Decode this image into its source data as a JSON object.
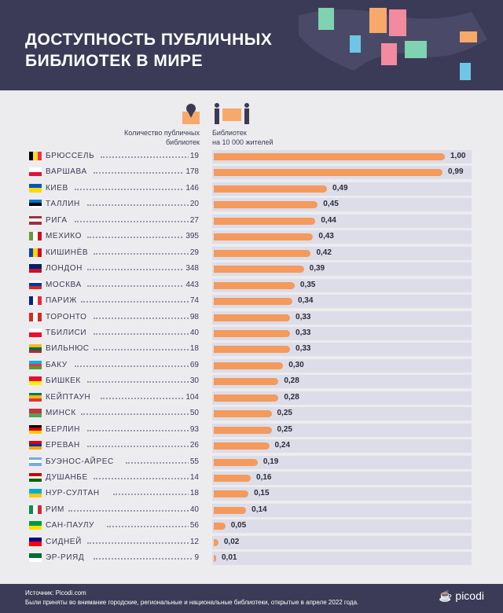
{
  "header": {
    "title_line1": "ДОСТУПНОСТЬ ПУБЛИЧНЫХ",
    "title_line2": "БИБЛИОТЕК В МИРЕ"
  },
  "columns": {
    "count_label_1": "Количество публичных",
    "count_label_2": "библиотек",
    "ratio_label_1": "Библиотек",
    "ratio_label_2": "на 10 000 жителей"
  },
  "chart_data": {
    "type": "bar",
    "orientation": "horizontal",
    "title": "ДОСТУПНОСТЬ ПУБЛИЧНЫХ БИБЛИОТЕК В МИРЕ",
    "xlabel": "Библиотек на 10 000 жителей",
    "xlim": [
      0,
      1
    ],
    "categories": [
      "БРЮССЕЛЬ",
      "ВАРШАВА",
      "КИЕВ",
      "ТАЛЛИН",
      "РИГА",
      "МЕХИКО",
      "КИШИНЁВ",
      "ЛОНДОН",
      "МОСКВА",
      "ПАРИЖ",
      "ТОРОНТО",
      "ТБИЛИСИ",
      "ВИЛЬНЮС",
      "БАКУ",
      "БИШКЕК",
      "КЕЙПТАУН",
      "МИНСК",
      "БЕРЛИН",
      "ЕРЕВАН",
      "БУЭНОС-АЙРЕС",
      "ДУШАНБЕ",
      "НУР-СУЛТАН",
      "РИМ",
      "САН-ПАУЛУ",
      "СИДНЕЙ",
      "ЭР-РИЯД"
    ],
    "counts": [
      19,
      178,
      146,
      20,
      27,
      395,
      29,
      348,
      443,
      74,
      98,
      40,
      18,
      69,
      30,
      104,
      50,
      93,
      26,
      55,
      14,
      18,
      40,
      56,
      12,
      9
    ],
    "values": [
      1.0,
      0.99,
      0.49,
      0.45,
      0.44,
      0.43,
      0.42,
      0.39,
      0.35,
      0.34,
      0.33,
      0.33,
      0.33,
      0.3,
      0.28,
      0.28,
      0.25,
      0.25,
      0.24,
      0.19,
      0.16,
      0.15,
      0.14,
      0.05,
      0.02,
      0.01
    ],
    "value_labels": [
      "1,00",
      "0,99",
      "0,49",
      "0,45",
      "0,44",
      "0,43",
      "0,42",
      "0,39",
      "0,35",
      "0,34",
      "0,33",
      "0,33",
      "0,33",
      "0,30",
      "0,28",
      "0,28",
      "0,25",
      "0,25",
      "0,24",
      "0,19",
      "0,16",
      "0,15",
      "0,14",
      "0,05",
      "0,02",
      "0,01"
    ],
    "flags": [
      [
        "#000",
        "#fdda24",
        "#ef3340"
      ],
      [
        "#fff",
        "#dc143c"
      ],
      [
        "#0057b7",
        "#ffd700"
      ],
      [
        "#0072ce",
        "#000",
        "#fff"
      ],
      [
        "#9e3039",
        "#fff",
        "#9e3039"
      ],
      [
        "#6a9a3a",
        "#fff",
        "#ce1126"
      ],
      [
        "#0046ae",
        "#ffd200",
        "#cc092f"
      ],
      [
        "#012169",
        "#c8102e"
      ],
      [
        "#fff",
        "#0039a6",
        "#d52b1e"
      ],
      [
        "#002395",
        "#fff",
        "#ed2939"
      ],
      [
        "#d52b1e",
        "#fff",
        "#d52b1e"
      ],
      [
        "#fff",
        "#e8112d"
      ],
      [
        "#fdb913",
        "#006a44",
        "#c1272d"
      ],
      [
        "#00b5e2",
        "#ef3340",
        "#509e2f"
      ],
      [
        "#e8112d",
        "#ffef00"
      ],
      [
        "#007a4d",
        "#ffb612",
        "#de3831"
      ],
      [
        "#c8313e",
        "#4aa657"
      ],
      [
        "#000",
        "#dd0000",
        "#ffce00"
      ],
      [
        "#d90012",
        "#0033a0",
        "#f2a800"
      ],
      [
        "#74acdf",
        "#fff",
        "#74acdf"
      ],
      [
        "#cc0000",
        "#fff",
        "#006600"
      ],
      [
        "#00afca",
        "#fec50c"
      ],
      [
        "#009246",
        "#fff",
        "#ce2b37"
      ],
      [
        "#009c3b",
        "#ffdf00"
      ],
      [
        "#00008b",
        "#ff0000"
      ],
      [
        "#006c35",
        "#fff"
      ]
    ],
    "flag_direction": [
      "v",
      "h",
      "h",
      "h",
      "h",
      "v",
      "v",
      "h",
      "h",
      "v",
      "v",
      "h",
      "h",
      "h",
      "h",
      "h",
      "h",
      "h",
      "h",
      "h",
      "h",
      "h",
      "v",
      "h",
      "h",
      "h"
    ]
  },
  "footer": {
    "source": "Источник: Picodi.com",
    "note": "Были приняты во внимание городские, региональные и национальные библиотеки, открытые в апреле 2022 года.",
    "logo": "picodi"
  }
}
